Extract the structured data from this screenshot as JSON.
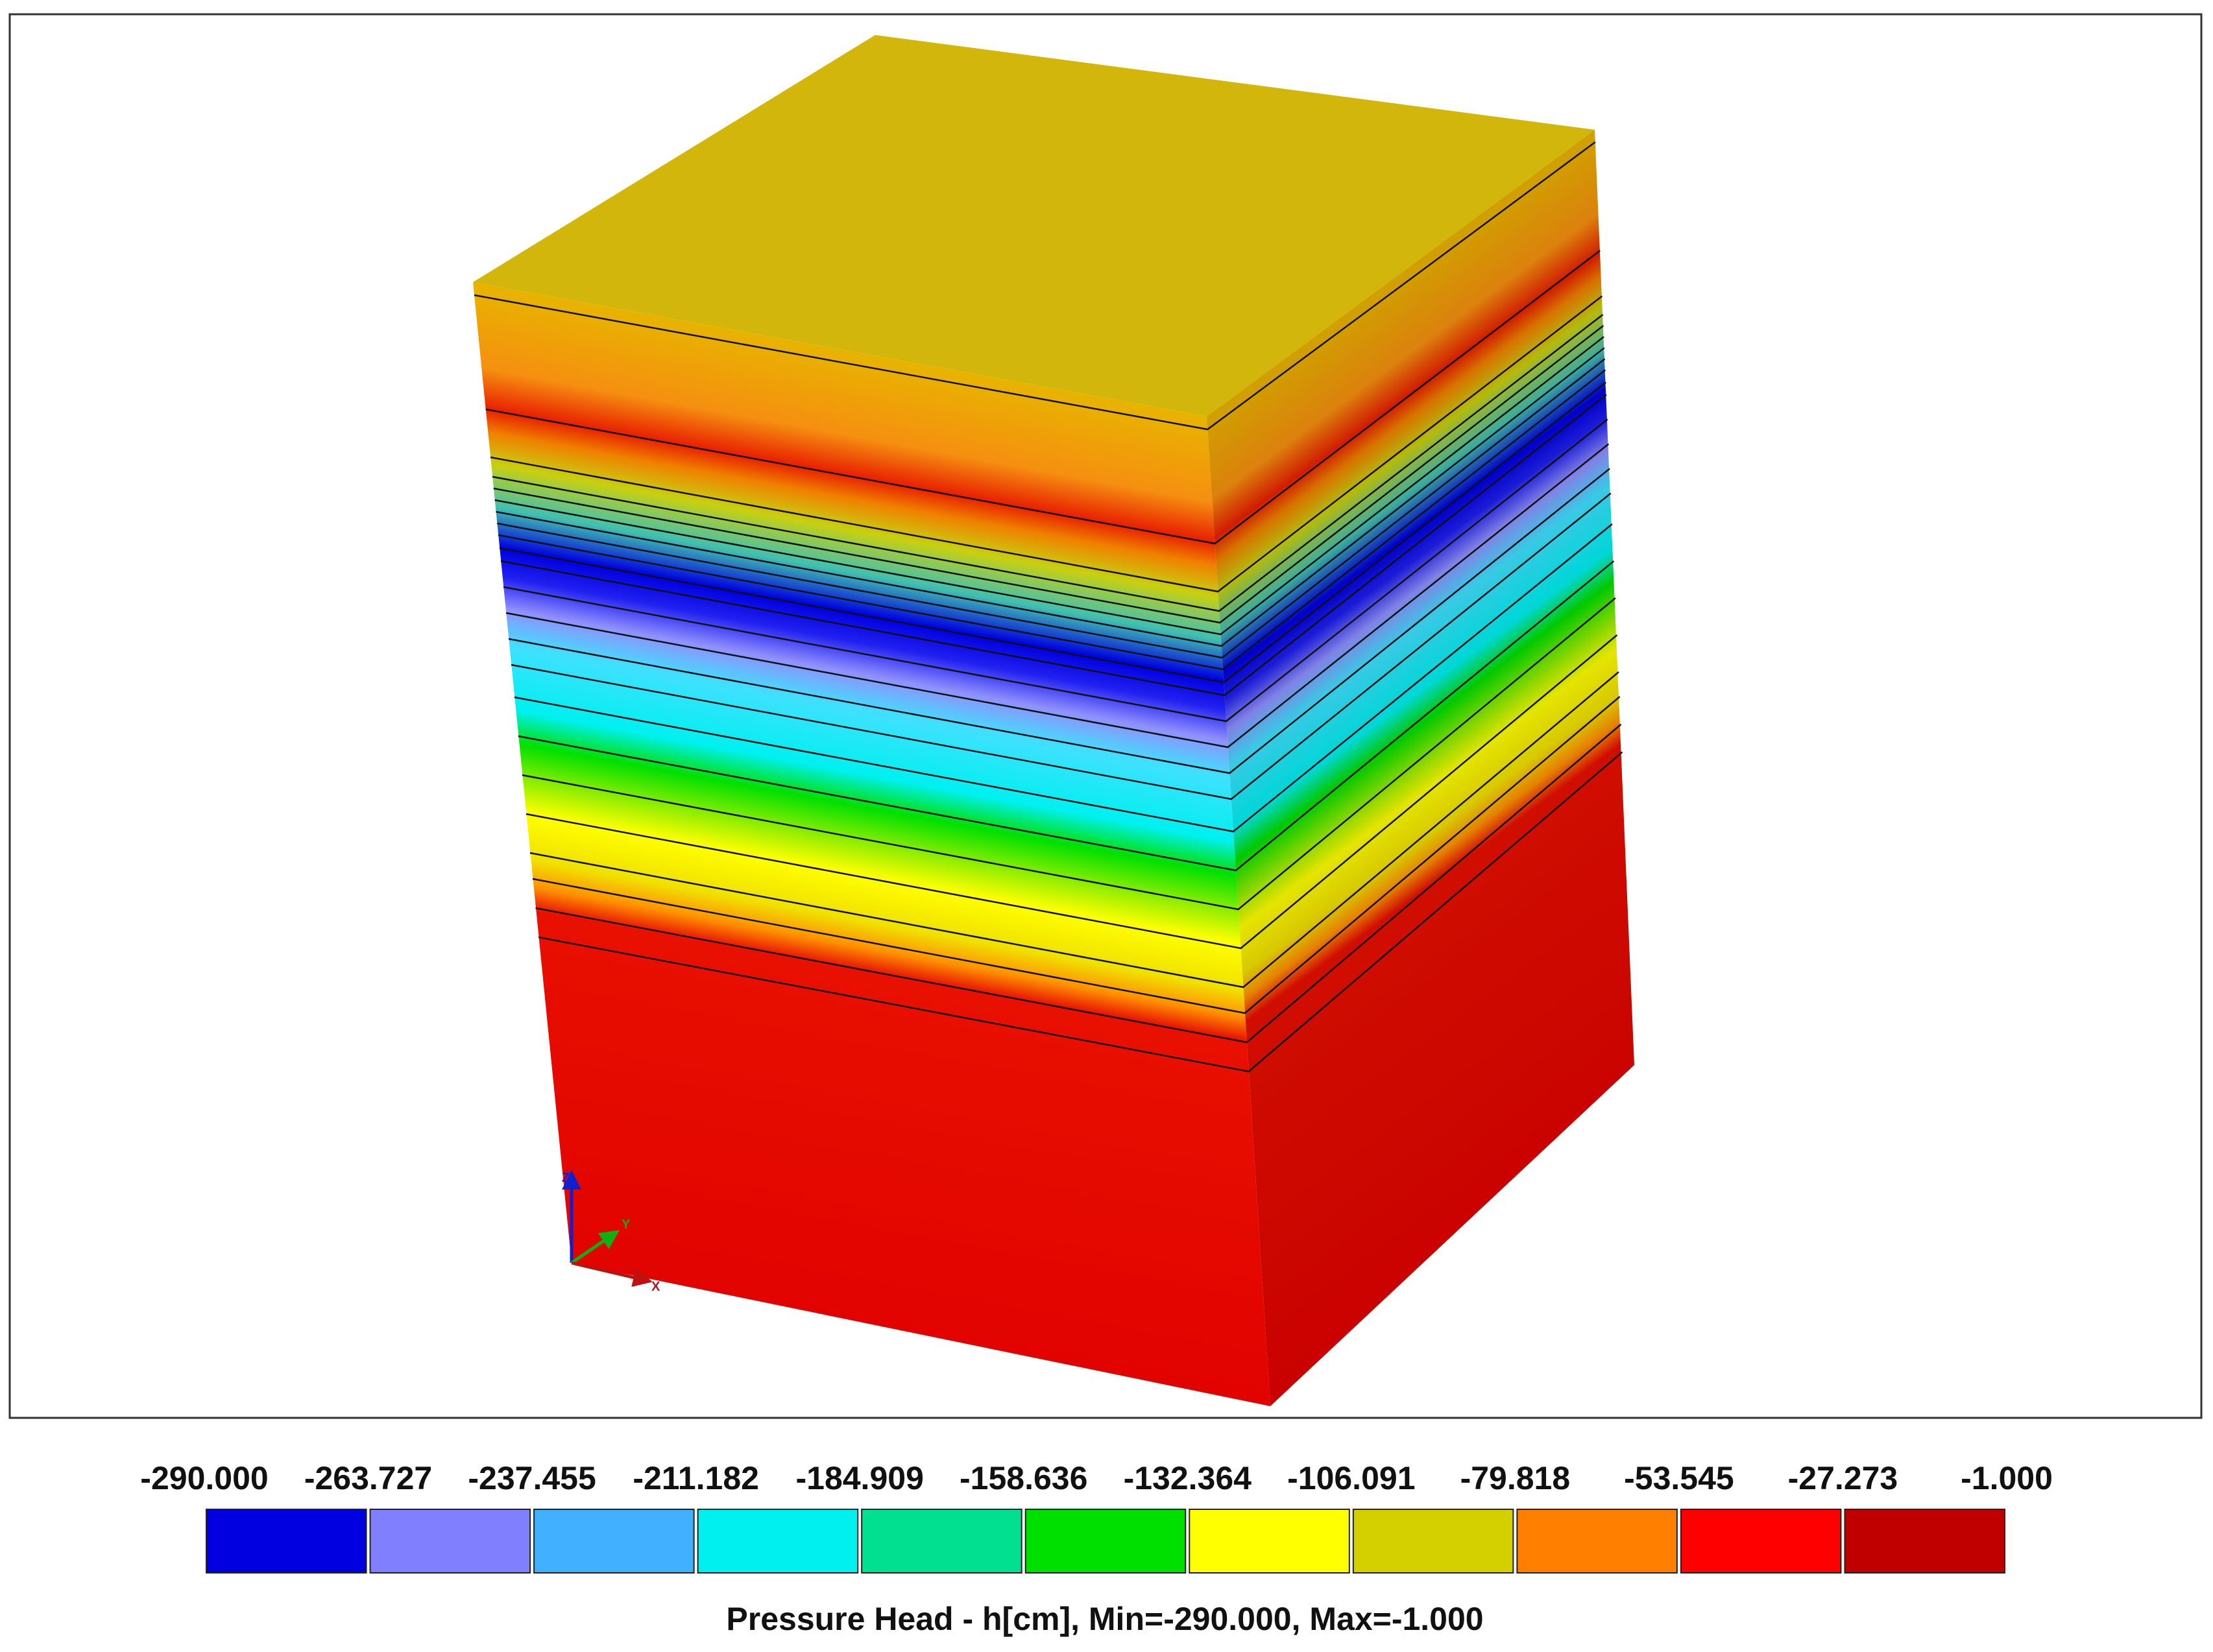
{
  "legend": {
    "ticks": [
      "-290.000",
      "-263.727",
      "-237.455",
      "-211.182",
      "-184.909",
      "-158.636",
      "-132.364",
      "-106.091",
      "-79.818",
      "-53.545",
      "-27.273",
      "-1.000"
    ],
    "colors": [
      "#0000e0",
      "#8080ff",
      "#40b0ff",
      "#00f0f0",
      "#00e090",
      "#00e000",
      "#ffff00",
      "#d4d000",
      "#ff8000",
      "#ff0000",
      "#c00000"
    ],
    "caption": "Pressure Head  - h[cm], Min=-290.000, Max=-1.000"
  },
  "axes": {
    "z": "Z",
    "y": "Y",
    "x": "X"
  }
}
